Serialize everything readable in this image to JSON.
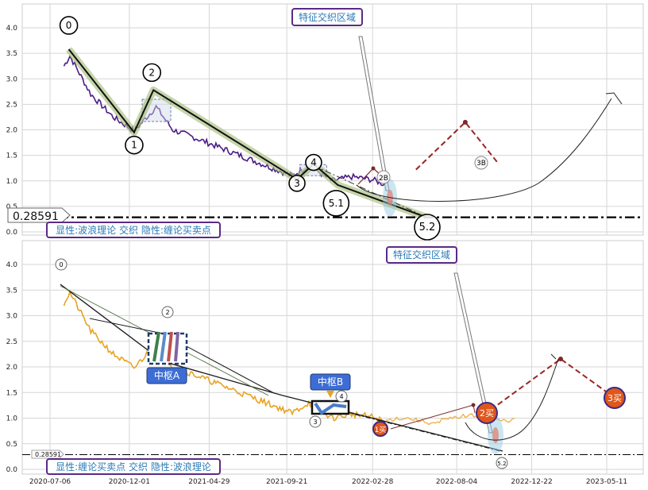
{
  "chart_data": [
    {
      "type": "line",
      "panel": "top",
      "title": "",
      "annotation_box": "特征交织区域",
      "legend_text": "显性:波浪理论 交织 隐性:缠论买卖点",
      "ylim": [
        0,
        4.2
      ],
      "yticks": [
        "0.0",
        "0.5",
        "1.0",
        "1.5",
        "2.0",
        "2.5",
        "3.0",
        "3.5",
        "4.0"
      ],
      "support_level": 0.28591,
      "support_label": "0.28591",
      "wave_points": [
        {
          "label": "0",
          "date": "2020-08-10",
          "value": 3.58
        },
        {
          "label": "1",
          "date": "2020-12-10",
          "value": 1.95
        },
        {
          "label": "2",
          "date": "2021-01-15",
          "value": 2.78
        },
        {
          "label": "3",
          "date": "2021-10-10",
          "value": 1.03
        },
        {
          "label": "4",
          "date": "2021-11-10",
          "value": 1.33
        },
        {
          "label": "5.1",
          "date": "2021-12-25",
          "value": 0.92
        },
        {
          "label": "5.2",
          "date": "2022-06-10",
          "value": 0.28
        }
      ],
      "projection_points": [
        {
          "label": "2B",
          "date": "2022-05-20",
          "value": 1.22
        },
        {
          "label": "",
          "date": "2022-08-20",
          "value": 2.15
        },
        {
          "label": "3B",
          "date": "2022-10-20",
          "value": 1.35
        }
      ]
    },
    {
      "type": "line",
      "panel": "bottom",
      "title": "",
      "annotation_box": "特征交织区域",
      "legend_text": "显性:缠论买卖点 交织 隐性:波浪理论",
      "ylim": [
        0,
        4.2
      ],
      "yticks": [
        "0.0",
        "0.5",
        "1.0",
        "1.5",
        "2.0",
        "2.5",
        "3.0",
        "3.5",
        "4.0"
      ],
      "xticks": [
        "2020-07-06",
        "2020-12-01",
        "2021-04-29",
        "2021-09-21",
        "2022-02-28",
        "2022-08-04",
        "2022-12-22",
        "2023-05-11"
      ],
      "support_level": 0.28591,
      "support_label": "0.28591",
      "pivot_a_label": "中枢A",
      "pivot_b_label": "中枢B",
      "wave_labels": [
        "0",
        "2",
        "3",
        "4",
        "5.2"
      ],
      "buy_points": [
        {
          "label": "1买",
          "date": "2022-04-15",
          "value": 0.78
        },
        {
          "label": "2买",
          "date": "2022-11-10",
          "value": 1.08
        },
        {
          "label": "3买",
          "date": "2023-07-05",
          "value": 1.38
        }
      ],
      "projection_points": [
        {
          "label": "",
          "date": "2022-11-20",
          "value": 1.2
        },
        {
          "label": "",
          "date": "2023-03-20",
          "value": 2.15
        },
        {
          "label": "3买",
          "date": "2023-07-05",
          "value": 1.38
        }
      ]
    }
  ]
}
